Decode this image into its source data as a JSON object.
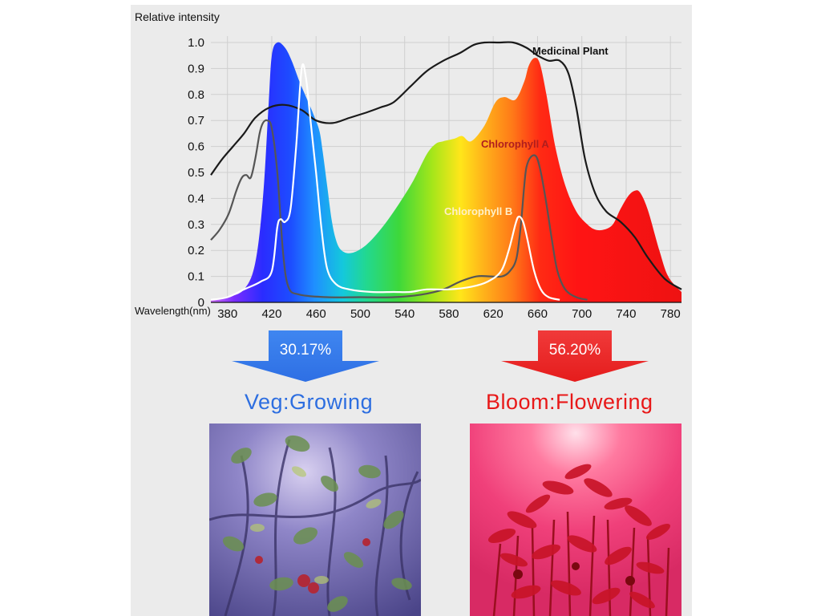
{
  "chart_data": {
    "type": "line",
    "ylabel": "Relative intensity",
    "xlabel": "Wavelength(nm)",
    "xlim": [
      365,
      790
    ],
    "ylim": [
      0,
      1.0
    ],
    "x_ticks": [
      380,
      420,
      460,
      500,
      540,
      580,
      620,
      660,
      700,
      740,
      780
    ],
    "y_ticks": [
      0,
      0.1,
      0.2,
      0.3,
      0.4,
      0.5,
      0.6,
      0.7,
      0.8,
      0.9,
      1.0
    ],
    "y_tick_labels": [
      "0",
      "0.1",
      "0.2",
      "0.3",
      "0.4",
      "0.5",
      "0.6",
      "0.7",
      "0.8",
      "0.9",
      "1.0"
    ],
    "grid": true,
    "series": [
      {
        "style": "rainbow-area",
        "points": [
          [
            365,
            0.01
          ],
          [
            380,
            0.02
          ],
          [
            395,
            0.05
          ],
          [
            405,
            0.15
          ],
          [
            412,
            0.4
          ],
          [
            417,
            0.75
          ],
          [
            420,
            0.95
          ],
          [
            425,
            1.0
          ],
          [
            432,
            0.98
          ],
          [
            438,
            0.93
          ],
          [
            445,
            0.85
          ],
          [
            452,
            0.78
          ],
          [
            458,
            0.72
          ],
          [
            463,
            0.66
          ],
          [
            466,
            0.58
          ],
          [
            470,
            0.45
          ],
          [
            474,
            0.32
          ],
          [
            478,
            0.24
          ],
          [
            483,
            0.2
          ],
          [
            492,
            0.19
          ],
          [
            505,
            0.22
          ],
          [
            520,
            0.29
          ],
          [
            535,
            0.38
          ],
          [
            548,
            0.47
          ],
          [
            560,
            0.57
          ],
          [
            568,
            0.61
          ],
          [
            575,
            0.62
          ],
          [
            585,
            0.63
          ],
          [
            592,
            0.64
          ],
          [
            600,
            0.62
          ],
          [
            612,
            0.68
          ],
          [
            622,
            0.77
          ],
          [
            630,
            0.79
          ],
          [
            640,
            0.78
          ],
          [
            648,
            0.85
          ],
          [
            652,
            0.91
          ],
          [
            657,
            0.94
          ],
          [
            662,
            0.92
          ],
          [
            668,
            0.8
          ],
          [
            676,
            0.6
          ],
          [
            685,
            0.45
          ],
          [
            695,
            0.35
          ],
          [
            705,
            0.3
          ],
          [
            712,
            0.28
          ],
          [
            720,
            0.28
          ],
          [
            728,
            0.3
          ],
          [
            735,
            0.36
          ],
          [
            742,
            0.41
          ],
          [
            748,
            0.43
          ],
          [
            753,
            0.42
          ],
          [
            760,
            0.35
          ],
          [
            770,
            0.2
          ],
          [
            778,
            0.1
          ],
          [
            790,
            0.04
          ]
        ]
      },
      {
        "name": "Medicinal Plant",
        "color": "#1a1a1a",
        "points": [
          [
            365,
            0.49
          ],
          [
            375,
            0.55
          ],
          [
            385,
            0.6
          ],
          [
            395,
            0.65
          ],
          [
            405,
            0.71
          ],
          [
            418,
            0.75
          ],
          [
            432,
            0.76
          ],
          [
            447,
            0.74
          ],
          [
            460,
            0.7
          ],
          [
            475,
            0.69
          ],
          [
            490,
            0.71
          ],
          [
            505,
            0.73
          ],
          [
            518,
            0.75
          ],
          [
            530,
            0.77
          ],
          [
            545,
            0.83
          ],
          [
            560,
            0.89
          ],
          [
            575,
            0.93
          ],
          [
            590,
            0.96
          ],
          [
            602,
            0.99
          ],
          [
            612,
            1.0
          ],
          [
            625,
            1.0
          ],
          [
            638,
            1.0
          ],
          [
            650,
            0.98
          ],
          [
            660,
            0.95
          ],
          [
            670,
            0.93
          ],
          [
            680,
            0.93
          ],
          [
            688,
            0.88
          ],
          [
            695,
            0.75
          ],
          [
            703,
            0.55
          ],
          [
            712,
            0.42
          ],
          [
            722,
            0.35
          ],
          [
            735,
            0.31
          ],
          [
            748,
            0.25
          ],
          [
            760,
            0.17
          ],
          [
            775,
            0.09
          ],
          [
            790,
            0.05
          ]
        ]
      },
      {
        "name": "Chlorophyll A",
        "color": "#555555",
        "points": [
          [
            365,
            0.24
          ],
          [
            373,
            0.28
          ],
          [
            381,
            0.34
          ],
          [
            388,
            0.43
          ],
          [
            393,
            0.48
          ],
          [
            397,
            0.49
          ],
          [
            401,
            0.48
          ],
          [
            405,
            0.55
          ],
          [
            409,
            0.65
          ],
          [
            412,
            0.69
          ],
          [
            416,
            0.7
          ],
          [
            420,
            0.67
          ],
          [
            425,
            0.5
          ],
          [
            430,
            0.2
          ],
          [
            435,
            0.06
          ],
          [
            445,
            0.03
          ],
          [
            470,
            0.02
          ],
          [
            500,
            0.02
          ],
          [
            530,
            0.02
          ],
          [
            555,
            0.03
          ],
          [
            575,
            0.05
          ],
          [
            590,
            0.08
          ],
          [
            605,
            0.1
          ],
          [
            618,
            0.1
          ],
          [
            628,
            0.1
          ],
          [
            635,
            0.12
          ],
          [
            641,
            0.17
          ],
          [
            645,
            0.3
          ],
          [
            648,
            0.45
          ],
          [
            650,
            0.52
          ],
          [
            654,
            0.56
          ],
          [
            659,
            0.56
          ],
          [
            663,
            0.5
          ],
          [
            668,
            0.38
          ],
          [
            673,
            0.24
          ],
          [
            678,
            0.12
          ],
          [
            685,
            0.05
          ],
          [
            695,
            0.02
          ],
          [
            705,
            0.01
          ]
        ]
      },
      {
        "name": "Chlorophyll B",
        "color": "#ffffff",
        "points": [
          [
            365,
            0.01
          ],
          [
            380,
            0.02
          ],
          [
            395,
            0.05
          ],
          [
            410,
            0.08
          ],
          [
            420,
            0.12
          ],
          [
            425,
            0.29
          ],
          [
            428,
            0.32
          ],
          [
            432,
            0.31
          ],
          [
            437,
            0.36
          ],
          [
            442,
            0.6
          ],
          [
            447,
            0.9
          ],
          [
            451,
            0.86
          ],
          [
            455,
            0.7
          ],
          [
            460,
            0.5
          ],
          [
            465,
            0.28
          ],
          [
            470,
            0.13
          ],
          [
            478,
            0.07
          ],
          [
            490,
            0.05
          ],
          [
            510,
            0.04
          ],
          [
            530,
            0.04
          ],
          [
            545,
            0.04
          ],
          [
            560,
            0.05
          ],
          [
            580,
            0.05
          ],
          [
            600,
            0.06
          ],
          [
            615,
            0.08
          ],
          [
            627,
            0.12
          ],
          [
            634,
            0.2
          ],
          [
            640,
            0.3
          ],
          [
            643,
            0.33
          ],
          [
            647,
            0.31
          ],
          [
            651,
            0.24
          ],
          [
            657,
            0.12
          ],
          [
            663,
            0.05
          ],
          [
            670,
            0.02
          ],
          [
            680,
            0.01
          ]
        ]
      }
    ]
  },
  "chart_text": {
    "medicinal_label": "Medicinal Plant",
    "chl_a_label": "Chlorophyll A",
    "chl_b_label": "Chlorophyll B"
  },
  "veg": {
    "percent": "30.17%",
    "label": "Veg:Growing",
    "color": "#2d6ee0"
  },
  "bloom": {
    "percent": "56.20%",
    "label": "Bloom:Flowering",
    "color": "#e81818"
  }
}
